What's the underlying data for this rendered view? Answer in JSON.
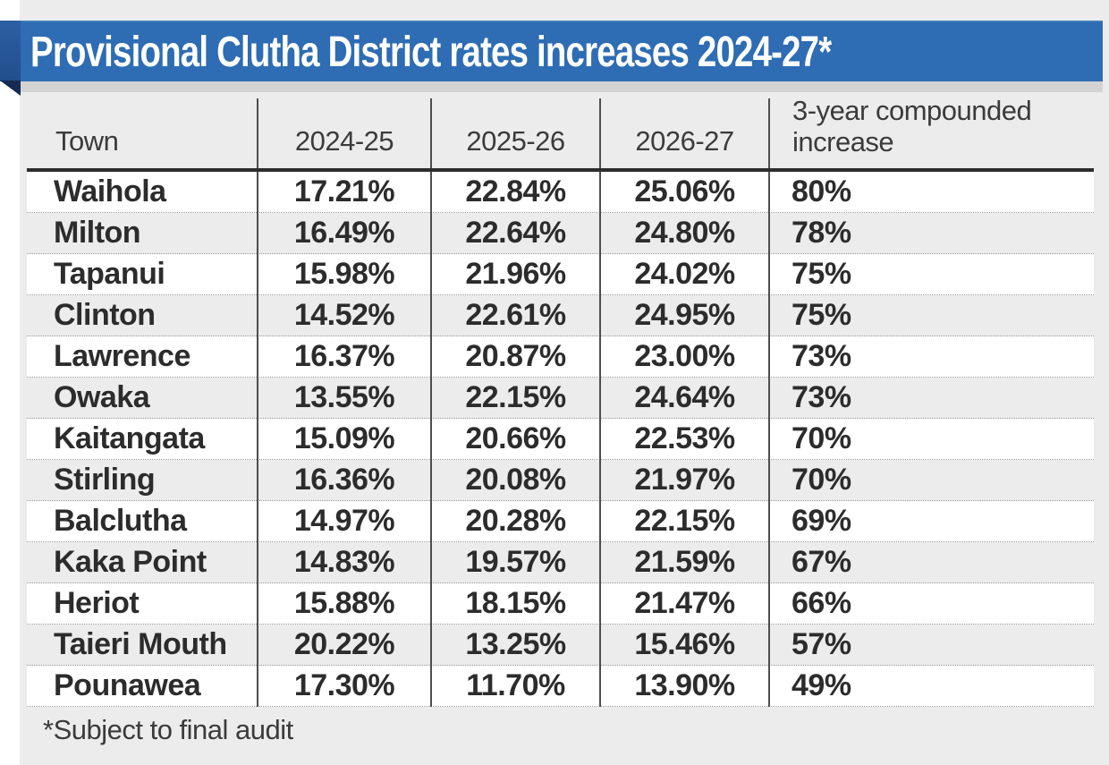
{
  "chart_data": {
    "type": "table",
    "title": "Provisional Clutha District rates increases 2024-27*",
    "columns": [
      "Town",
      "2024-25",
      "2025-26",
      "2026-27",
      "3-year compounded increase"
    ],
    "rows": [
      [
        "Waihola",
        "17.21%",
        "22.84%",
        "25.06%",
        "80%"
      ],
      [
        "Milton",
        "16.49%",
        "22.64%",
        "24.80%",
        "78%"
      ],
      [
        "Tapanui",
        "15.98%",
        "21.96%",
        "24.02%",
        "75%"
      ],
      [
        "Clinton",
        "14.52%",
        "22.61%",
        "24.95%",
        "75%"
      ],
      [
        "Lawrence",
        "16.37%",
        "20.87%",
        "23.00%",
        "73%"
      ],
      [
        "Owaka",
        "13.55%",
        "22.15%",
        "24.64%",
        "73%"
      ],
      [
        "Kaitangata",
        "15.09%",
        "20.66%",
        "22.53%",
        "70%"
      ],
      [
        "Stirling",
        "16.36%",
        "20.08%",
        "21.97%",
        "70%"
      ],
      [
        "Balclutha",
        "14.97%",
        "20.28%",
        "22.15%",
        "69%"
      ],
      [
        "Kaka Point",
        "14.83%",
        "19.57%",
        "21.59%",
        "67%"
      ],
      [
        "Heriot",
        "15.88%",
        "18.15%",
        "21.47%",
        "66%"
      ],
      [
        "Taieri Mouth",
        "20.22%",
        "13.25%",
        "15.46%",
        "57%"
      ],
      [
        "Pounawea",
        "17.30%",
        "11.70%",
        "13.90%",
        "49%"
      ]
    ],
    "footnote": "*Subject to final audit",
    "layout_hints": {
      "striped_rows": "alternating white and grey starting white",
      "legend_position": "none",
      "grid": "vertical column rules and dotted row separators"
    }
  },
  "colors": {
    "banner_blue": "#2e6cb3",
    "banner_fold_navy": "#152b52",
    "banner_shadow_grey": "#d3d3d3",
    "panel_grey": "#edecec",
    "row_white": "#ffffff",
    "text_dark": "#2c2c2c",
    "rule_dark": "#2d2d2d"
  }
}
